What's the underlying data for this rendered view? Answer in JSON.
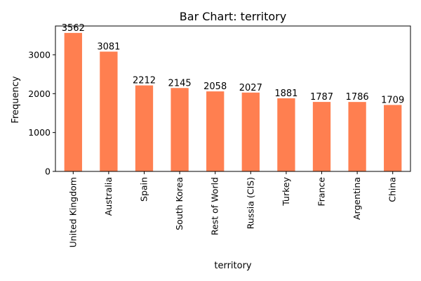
{
  "chart_data": {
    "type": "bar",
    "title": "Bar Chart: territory",
    "xlabel": "territory",
    "ylabel": "Frequency",
    "categories": [
      "United Kingdom",
      "Australia",
      "Spain",
      "South Korea",
      "Rest of World",
      "Russia (CIS)",
      "Turkey",
      "France",
      "Argentina",
      "China"
    ],
    "values": [
      3562,
      3081,
      2212,
      2145,
      2058,
      2027,
      1881,
      1787,
      1786,
      1709
    ],
    "ylim": [
      0,
      3740
    ],
    "yticks": [
      0,
      1000,
      2000,
      3000
    ],
    "grid": false,
    "legend": "none",
    "colors": {
      "bar": "#ff7f50"
    }
  }
}
